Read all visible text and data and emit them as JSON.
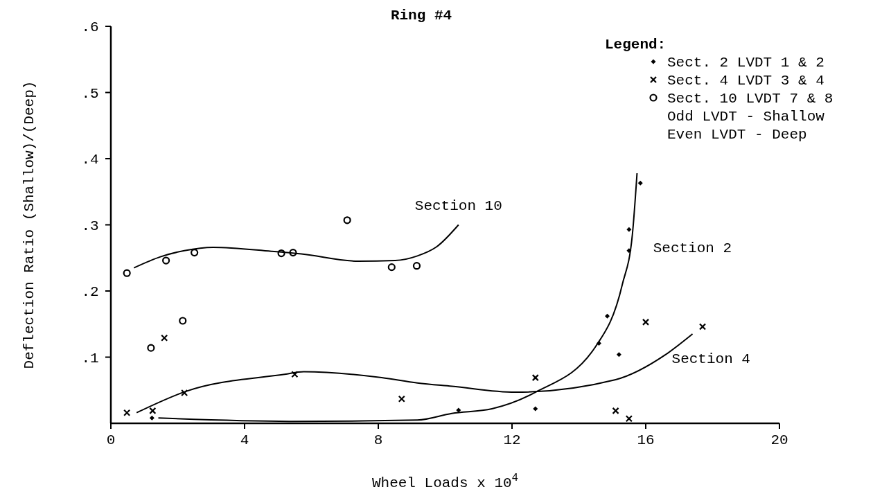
{
  "chart_data": {
    "type": "scatter",
    "title": "Ring #4",
    "xlabel": "Wheel Loads x 10$^{4}$",
    "ylabel": "Deflection Ratio (Shallow)/(Deep)",
    "legend_title": "Legend:",
    "legend": "top right",
    "xlim": [
      0,
      20
    ],
    "ylim": [
      0,
      0.6
    ],
    "xticks": [
      0,
      4,
      8,
      12,
      16,
      20
    ],
    "yticks": [
      {
        "value": 0.1,
        "label": ".1"
      },
      {
        "value": 0.2,
        "label": ".2"
      },
      {
        "value": 0.3,
        "label": ".3"
      },
      {
        "value": 0.4,
        "label": ".4"
      },
      {
        "value": 0.5,
        "label": ".5"
      },
      {
        "value": 0.6,
        "label": ".6"
      }
    ],
    "annotations": [
      "Odd LVDT - Shallow",
      "Even LVDT - Deep"
    ],
    "series": [
      {
        "name": "Sect. 2 LVDT 1 & 2",
        "marker": "diamond",
        "color": "#000000",
        "x": [
          1.23,
          10.4,
          12.7,
          14.6,
          15.2,
          14.85,
          15.5,
          15.5,
          15.84
        ],
        "values": [
          0.008,
          0.02,
          0.022,
          0.121,
          0.104,
          0.162,
          0.261,
          0.293,
          0.363
        ]
      },
      {
        "name": "Sect. 4 LVDT 3 & 4",
        "marker": "cross",
        "color": "#000000",
        "x": [
          0.48,
          1.25,
          1.6,
          2.2,
          5.5,
          8.7,
          12.7,
          15.1,
          15.5,
          16.0,
          17.7
        ],
        "values": [
          0.016,
          0.019,
          0.129,
          0.046,
          0.074,
          0.037,
          0.069,
          0.019,
          0.007,
          0.153,
          0.146
        ]
      },
      {
        "name": "Sect. 10 LVDT 7 & 8",
        "marker": "circle",
        "color": "#000000",
        "x": [
          0.48,
          1.65,
          2.5,
          5.1,
          5.45,
          7.07,
          8.4,
          9.15,
          1.2,
          2.15
        ],
        "values": [
          0.227,
          0.246,
          0.258,
          0.257,
          0.258,
          0.307,
          0.236,
          0.238,
          0.114,
          0.155
        ]
      },
      {
        "name": "Section 10",
        "type": "line",
        "color": "#000000",
        "x": [
          0.69,
          1.5,
          2.2,
          3.06,
          4.8,
          5.7,
          7.4,
          8.5,
          9.17,
          9.75,
          10.4
        ],
        "values": [
          0.235,
          0.252,
          0.261,
          0.266,
          0.26,
          0.256,
          0.245,
          0.246,
          0.253,
          0.267,
          0.3
        ]
      },
      {
        "name": "Section 2",
        "type": "line",
        "color": "#000000",
        "x": [
          1.42,
          5.35,
          9.17,
          10.2,
          11.4,
          12.7,
          14.5,
          15.3,
          15.6,
          15.74
        ],
        "values": [
          0.008,
          0.003,
          0.005,
          0.015,
          0.022,
          0.047,
          0.116,
          0.21,
          0.285,
          0.378
        ]
      },
      {
        "name": "Section 4",
        "type": "line",
        "color": "#000000",
        "x": [
          0.77,
          2.23,
          5.2,
          5.77,
          8.1,
          9.17,
          10.2,
          12.1,
          15.1,
          16.6,
          17.4
        ],
        "values": [
          0.016,
          0.048,
          0.074,
          0.078,
          0.069,
          0.061,
          0.056,
          0.047,
          0.066,
          0.104,
          0.135
        ]
      }
    ]
  }
}
